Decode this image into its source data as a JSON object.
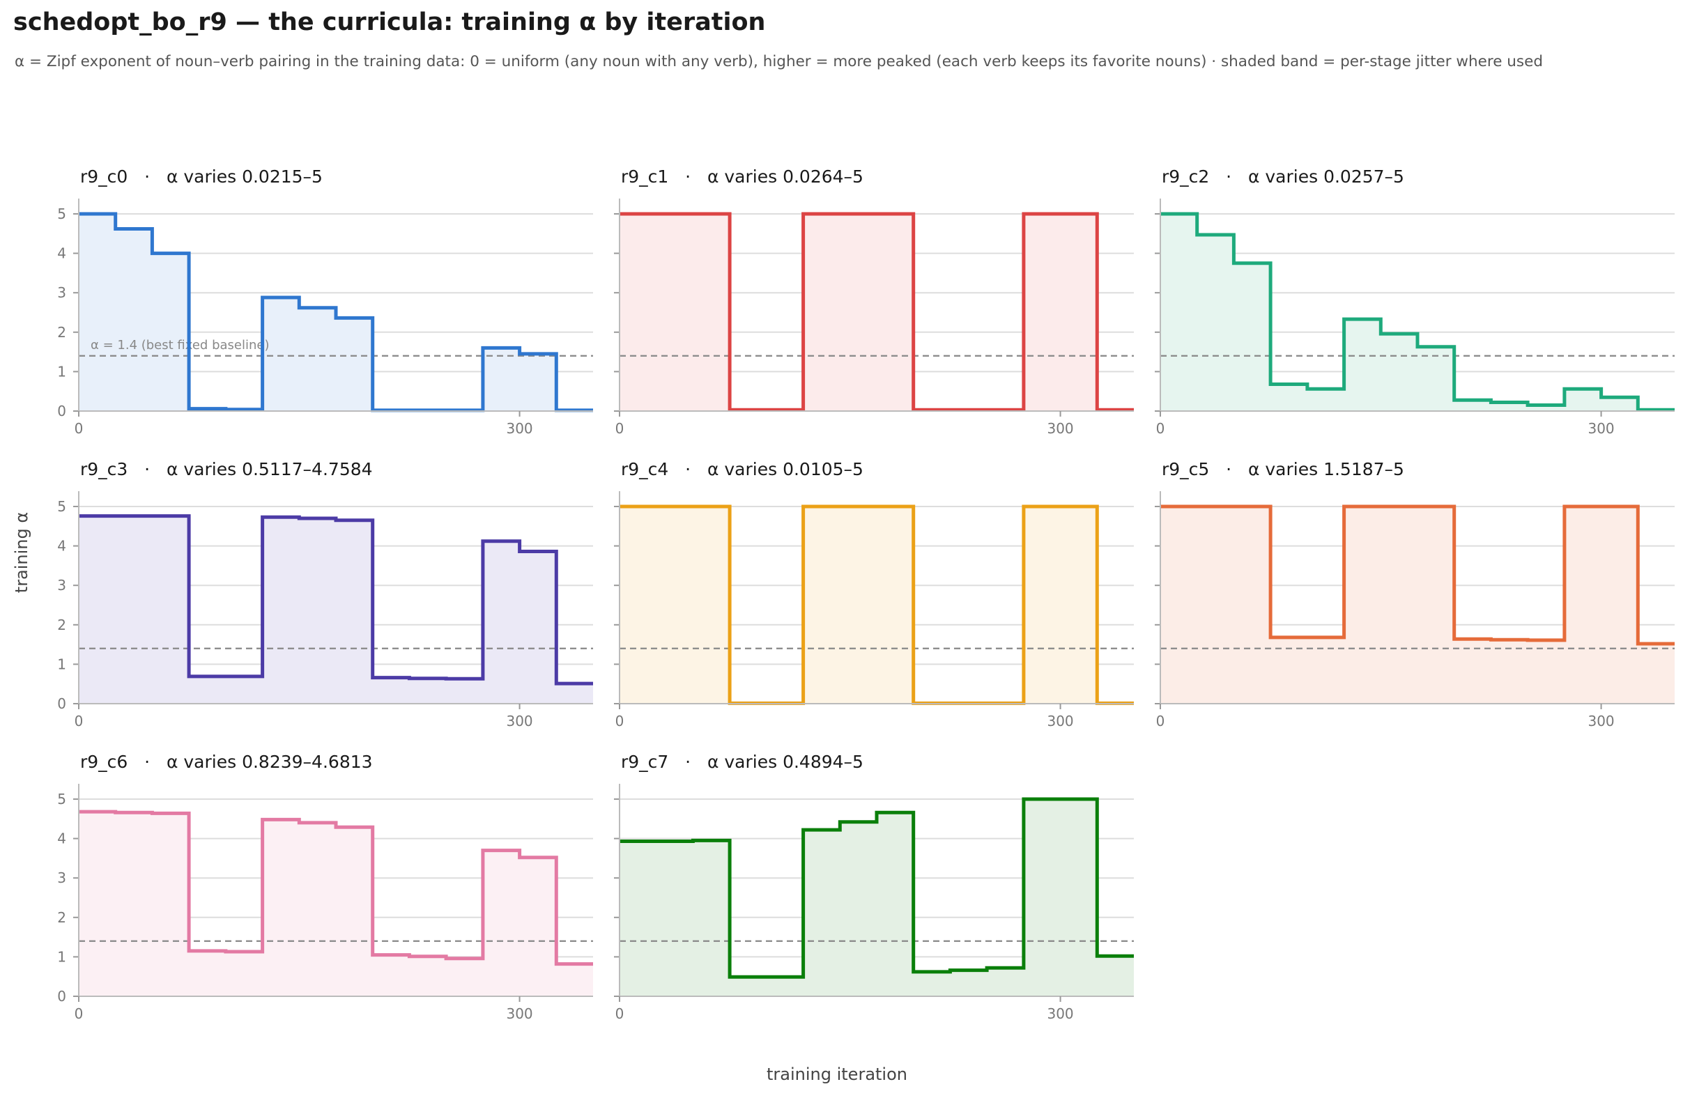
{
  "title": "schedopt_bo_r9 — the curricula: training α by iteration",
  "subtitle": "α = Zipf exponent of noun–verb pairing in the training data: 0 = uniform (any noun with any verb), higher = more peaked (each verb keeps its favorite nouns) · shaded band = per-stage jitter where used",
  "xlabel": "training iteration",
  "ylabel": "training α",
  "baseline_label": "α = 1.4 (best fixed baseline)",
  "chart_data": {
    "type": "line",
    "step": true,
    "xlim": [
      0,
      350
    ],
    "ylim": [
      0,
      5.3
    ],
    "xticks": [
      0,
      300
    ],
    "yticks": [
      0,
      1,
      2,
      3,
      4,
      5
    ],
    "grid": "horizontal",
    "baseline": 1.4,
    "x": [
      0,
      25,
      50,
      75,
      100,
      125,
      150,
      175,
      200,
      225,
      250,
      275,
      300,
      325
    ],
    "panels": [
      {
        "id": "r9_c0",
        "title_text": "r9_c0   ·   α varies 0.0215–5",
        "color": "#2f77cf",
        "fill": "#e8f0fa",
        "show_baseline_label": true,
        "values": [
          5.0,
          4.62,
          4.0,
          0.06,
          0.04,
          2.88,
          2.62,
          2.36,
          0.02,
          0.02,
          0.02,
          1.6,
          1.45,
          0.02
        ]
      },
      {
        "id": "r9_c1",
        "title_text": "r9_c1   ·   α varies 0.0264–5",
        "color": "#dc4444",
        "fill": "#fcebeb",
        "show_baseline_label": false,
        "values": [
          5.0,
          5.0,
          5.0,
          0.03,
          0.03,
          5.0,
          5.0,
          5.0,
          0.03,
          0.03,
          0.03,
          5.0,
          5.0,
          0.03
        ]
      },
      {
        "id": "r9_c2",
        "title_text": "r9_c2   ·   α varies 0.0257–5",
        "color": "#1eaa7c",
        "fill": "#e6f5ef",
        "show_baseline_label": false,
        "values": [
          5.0,
          4.47,
          3.75,
          0.68,
          0.56,
          2.33,
          1.96,
          1.63,
          0.28,
          0.22,
          0.15,
          0.56,
          0.35,
          0.03
        ]
      },
      {
        "id": "r9_c3",
        "title_text": "r9_c3   ·   α varies 0.5117–4.7584",
        "color": "#4c3ba6",
        "fill": "#ebe9f6",
        "show_baseline_label": false,
        "values": [
          4.76,
          4.76,
          4.76,
          0.69,
          0.69,
          4.73,
          4.7,
          4.65,
          0.66,
          0.64,
          0.63,
          4.12,
          3.86,
          0.51
        ]
      },
      {
        "id": "r9_c4",
        "title_text": "r9_c4   ·   α varies 0.0105–5",
        "color": "#eba117",
        "fill": "#fdf4e5",
        "show_baseline_label": false,
        "values": [
          5.0,
          5.0,
          5.0,
          0.01,
          0.01,
          5.0,
          5.0,
          5.0,
          0.01,
          0.01,
          0.01,
          5.0,
          5.0,
          0.01
        ]
      },
      {
        "id": "r9_c5",
        "title_text": "r9_c5   ·   α varies 1.5187–5",
        "color": "#e56b3a",
        "fill": "#fcede7",
        "show_baseline_label": false,
        "values": [
          5.0,
          5.0,
          5.0,
          1.68,
          1.68,
          5.0,
          5.0,
          5.0,
          1.64,
          1.62,
          1.61,
          5.0,
          5.0,
          1.52
        ]
      },
      {
        "id": "r9_c6",
        "title_text": "r9_c6   ·   α varies 0.8239–4.6813",
        "color": "#e37aa3",
        "fill": "#fcf0f4",
        "show_baseline_label": false,
        "values": [
          4.68,
          4.66,
          4.64,
          1.15,
          1.13,
          4.48,
          4.4,
          4.29,
          1.05,
          1.01,
          0.96,
          3.7,
          3.52,
          0.82
        ]
      },
      {
        "id": "r9_c7",
        "title_text": "r9_c7   ·   α varies 0.4894–5",
        "color": "#0a7f0a",
        "fill": "#e4f0e4",
        "show_baseline_label": false,
        "values": [
          3.93,
          3.93,
          3.95,
          0.49,
          0.49,
          4.22,
          4.42,
          4.66,
          0.62,
          0.66,
          0.72,
          5.0,
          5.0,
          1.02
        ]
      }
    ]
  }
}
